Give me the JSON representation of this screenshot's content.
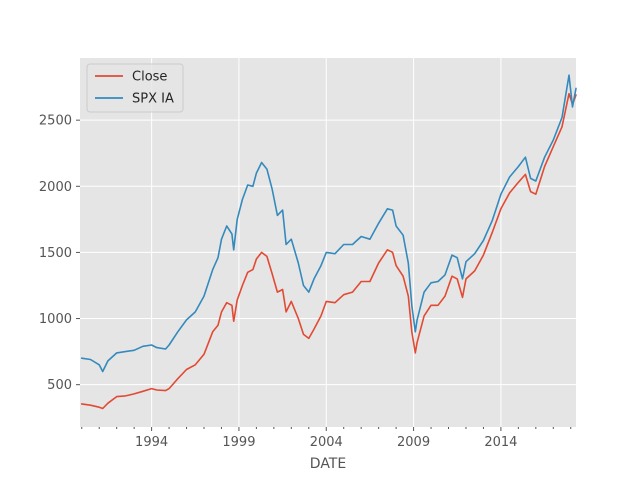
{
  "chart_data": {
    "type": "line",
    "title": "",
    "xlabel": "DATE",
    "ylabel": "",
    "x_ticks": [
      1994,
      1999,
      2004,
      2009,
      2014
    ],
    "y_ticks": [
      500,
      1000,
      1500,
      2000,
      2500
    ],
    "xlim": [
      1989.9,
      2018.3
    ],
    "ylim": [
      180,
      2970
    ],
    "grid": true,
    "legend_position": "top-left",
    "series": [
      {
        "name": "Close",
        "color": "#E24A33",
        "points": [
          [
            1990.0,
            355
          ],
          [
            1990.5,
            345
          ],
          [
            1991.0,
            330
          ],
          [
            1991.2,
            320
          ],
          [
            1991.5,
            360
          ],
          [
            1992.0,
            410
          ],
          [
            1992.5,
            415
          ],
          [
            1993.0,
            430
          ],
          [
            1993.5,
            450
          ],
          [
            1994.0,
            470
          ],
          [
            1994.3,
            460
          ],
          [
            1994.8,
            455
          ],
          [
            1995.0,
            470
          ],
          [
            1995.5,
            545
          ],
          [
            1996.0,
            615
          ],
          [
            1996.5,
            650
          ],
          [
            1997.0,
            730
          ],
          [
            1997.5,
            900
          ],
          [
            1997.8,
            950
          ],
          [
            1998.0,
            1050
          ],
          [
            1998.3,
            1120
          ],
          [
            1998.6,
            1100
          ],
          [
            1998.7,
            980
          ],
          [
            1998.9,
            1140
          ],
          [
            1999.2,
            1250
          ],
          [
            1999.5,
            1350
          ],
          [
            1999.8,
            1370
          ],
          [
            2000.0,
            1450
          ],
          [
            2000.3,
            1500
          ],
          [
            2000.6,
            1470
          ],
          [
            2000.9,
            1340
          ],
          [
            2001.2,
            1200
          ],
          [
            2001.5,
            1220
          ],
          [
            2001.7,
            1050
          ],
          [
            2002.0,
            1130
          ],
          [
            2002.4,
            1000
          ],
          [
            2002.7,
            880
          ],
          [
            2003.0,
            850
          ],
          [
            2003.3,
            920
          ],
          [
            2003.7,
            1020
          ],
          [
            2004.0,
            1130
          ],
          [
            2004.5,
            1120
          ],
          [
            2005.0,
            1180
          ],
          [
            2005.5,
            1200
          ],
          [
            2006.0,
            1280
          ],
          [
            2006.5,
            1280
          ],
          [
            2007.0,
            1420
          ],
          [
            2007.5,
            1520
          ],
          [
            2007.8,
            1500
          ],
          [
            2008.0,
            1400
          ],
          [
            2008.4,
            1320
          ],
          [
            2008.7,
            1170
          ],
          [
            2008.9,
            900
          ],
          [
            2009.1,
            740
          ],
          [
            2009.2,
            820
          ],
          [
            2009.6,
            1020
          ],
          [
            2010.0,
            1100
          ],
          [
            2010.4,
            1100
          ],
          [
            2010.8,
            1170
          ],
          [
            2011.2,
            1320
          ],
          [
            2011.5,
            1300
          ],
          [
            2011.8,
            1160
          ],
          [
            2012.0,
            1300
          ],
          [
            2012.5,
            1360
          ],
          [
            2013.0,
            1480
          ],
          [
            2013.5,
            1650
          ],
          [
            2014.0,
            1830
          ],
          [
            2014.5,
            1950
          ],
          [
            2015.0,
            2030
          ],
          [
            2015.4,
            2090
          ],
          [
            2015.7,
            1960
          ],
          [
            2016.0,
            1940
          ],
          [
            2016.5,
            2150
          ],
          [
            2017.0,
            2300
          ],
          [
            2017.5,
            2450
          ],
          [
            2017.9,
            2700
          ],
          [
            2018.1,
            2620
          ],
          [
            2018.3,
            2690
          ]
        ]
      },
      {
        "name": "SPX IA",
        "color": "#348ABD",
        "points": [
          [
            1990.0,
            700
          ],
          [
            1990.5,
            690
          ],
          [
            1991.0,
            650
          ],
          [
            1991.2,
            600
          ],
          [
            1991.5,
            680
          ],
          [
            1992.0,
            740
          ],
          [
            1992.5,
            750
          ],
          [
            1993.0,
            760
          ],
          [
            1993.5,
            790
          ],
          [
            1994.0,
            800
          ],
          [
            1994.3,
            780
          ],
          [
            1994.8,
            770
          ],
          [
            1995.0,
            800
          ],
          [
            1995.5,
            900
          ],
          [
            1996.0,
            990
          ],
          [
            1996.5,
            1050
          ],
          [
            1997.0,
            1170
          ],
          [
            1997.5,
            1370
          ],
          [
            1997.8,
            1460
          ],
          [
            1998.0,
            1600
          ],
          [
            1998.3,
            1700
          ],
          [
            1998.6,
            1640
          ],
          [
            1998.7,
            1520
          ],
          [
            1998.9,
            1750
          ],
          [
            1999.2,
            1900
          ],
          [
            1999.5,
            2010
          ],
          [
            1999.8,
            2000
          ],
          [
            2000.0,
            2100
          ],
          [
            2000.3,
            2180
          ],
          [
            2000.6,
            2130
          ],
          [
            2000.9,
            1980
          ],
          [
            2001.2,
            1780
          ],
          [
            2001.5,
            1820
          ],
          [
            2001.7,
            1560
          ],
          [
            2002.0,
            1600
          ],
          [
            2002.4,
            1420
          ],
          [
            2002.7,
            1250
          ],
          [
            2003.0,
            1200
          ],
          [
            2003.3,
            1300
          ],
          [
            2003.7,
            1400
          ],
          [
            2004.0,
            1500
          ],
          [
            2004.5,
            1490
          ],
          [
            2005.0,
            1560
          ],
          [
            2005.5,
            1560
          ],
          [
            2006.0,
            1620
          ],
          [
            2006.5,
            1600
          ],
          [
            2007.0,
            1720
          ],
          [
            2007.5,
            1830
          ],
          [
            2007.8,
            1820
          ],
          [
            2008.0,
            1700
          ],
          [
            2008.4,
            1630
          ],
          [
            2008.7,
            1420
          ],
          [
            2008.9,
            1100
          ],
          [
            2009.1,
            900
          ],
          [
            2009.2,
            990
          ],
          [
            2009.6,
            1200
          ],
          [
            2010.0,
            1270
          ],
          [
            2010.4,
            1280
          ],
          [
            2010.8,
            1330
          ],
          [
            2011.2,
            1480
          ],
          [
            2011.5,
            1460
          ],
          [
            2011.8,
            1300
          ],
          [
            2012.0,
            1430
          ],
          [
            2012.5,
            1490
          ],
          [
            2013.0,
            1590
          ],
          [
            2013.5,
            1740
          ],
          [
            2014.0,
            1940
          ],
          [
            2014.5,
            2070
          ],
          [
            2015.0,
            2150
          ],
          [
            2015.4,
            2220
          ],
          [
            2015.7,
            2060
          ],
          [
            2016.0,
            2040
          ],
          [
            2016.5,
            2220
          ],
          [
            2017.0,
            2350
          ],
          [
            2017.5,
            2520
          ],
          [
            2017.9,
            2840
          ],
          [
            2018.1,
            2600
          ],
          [
            2018.3,
            2740
          ]
        ]
      }
    ]
  }
}
